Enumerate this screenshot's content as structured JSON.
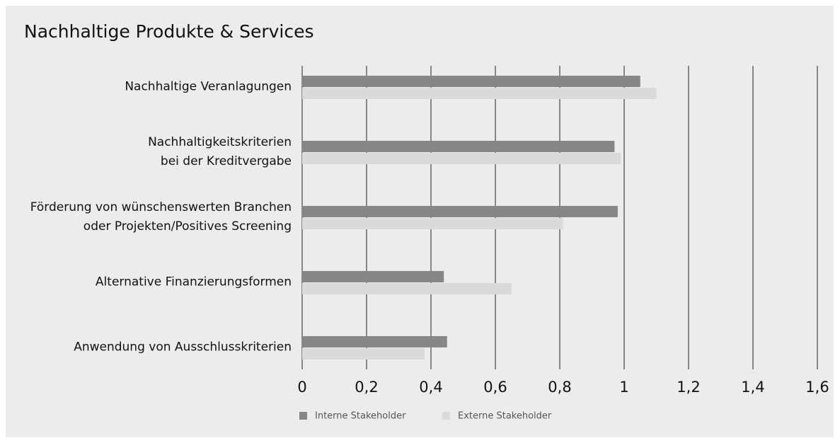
{
  "chart_data": {
    "type": "bar",
    "orientation": "horizontal",
    "title": "Nachhaltige Produkte & Services",
    "categories": [
      "Nachhaltige Veranlagungen",
      "Nachhaltigkeitskriterien\nbei der Kreditvergabe",
      "Förderung von wünschenswerten Branchen\noder Projekten/Positives Screening",
      "Alternative Finanzierungsformen",
      "Anwendung von Ausschlusskriterien"
    ],
    "series": [
      {
        "name": "Interne Stakeholder",
        "color": "#878787",
        "values": [
          1.05,
          0.97,
          0.98,
          0.44,
          0.45
        ]
      },
      {
        "name": "Externe Stakeholder",
        "color": "#dadada",
        "values": [
          1.1,
          0.99,
          0.81,
          0.65,
          0.38
        ]
      }
    ],
    "xlim": [
      0,
      1.6
    ],
    "xticks": [
      0,
      {
        "value": 0.2,
        "label": "0,2"
      },
      {
        "value": 0.4,
        "label": "0,4"
      },
      {
        "value": 0.6,
        "label": "0,6"
      },
      {
        "value": 0.8,
        "label": "0,8"
      },
      1,
      {
        "value": 1.2,
        "label": "1,2"
      },
      {
        "value": 1.4,
        "label": "1,4"
      },
      {
        "value": 1.6,
        "label": "1,6"
      }
    ],
    "grid": true,
    "legend": "bottom"
  }
}
